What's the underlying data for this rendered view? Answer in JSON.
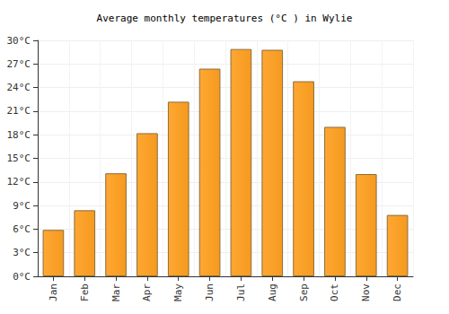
{
  "chart_data": {
    "type": "bar",
    "title": "Average monthly temperatures (°C ) in Wylie",
    "categories": [
      "Jan",
      "Feb",
      "Mar",
      "Apr",
      "May",
      "Jun",
      "Jul",
      "Aug",
      "Sep",
      "Oct",
      "Nov",
      "Dec"
    ],
    "values": [
      5.9,
      8.4,
      13.1,
      18.2,
      22.2,
      26.4,
      28.9,
      28.8,
      24.8,
      19.0,
      13.0,
      7.8
    ],
    "color": "#ffa733",
    "ylim": [
      0,
      30
    ],
    "yticks": [
      {
        "value": 0,
        "label": "0°C"
      },
      {
        "value": 3,
        "label": "3°C"
      },
      {
        "value": 6,
        "label": "6°C"
      },
      {
        "value": 9,
        "label": "9°C"
      },
      {
        "value": 12,
        "label": "12°C"
      },
      {
        "value": 15,
        "label": "15°C"
      },
      {
        "value": 18,
        "label": "18°C"
      },
      {
        "value": 21,
        "label": "21°C"
      },
      {
        "value": 24,
        "label": "24°C"
      },
      {
        "value": 27,
        "label": "27°C"
      },
      {
        "value": 30,
        "label": "30°C"
      }
    ],
    "grid": true
  }
}
